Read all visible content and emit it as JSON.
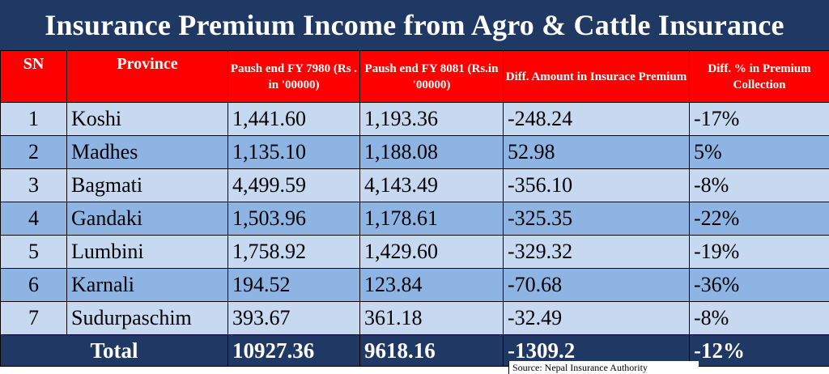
{
  "title": "Insurance Premium Income from Agro & Cattle Insurance",
  "headers": {
    "sn": "SN",
    "province": "Province",
    "fy7980": "Paush end FY 7980 (Rs . in '00000)",
    "fy8081": "Paush end FY 8081 (Rs.in '00000)",
    "diff_amount": "Diff. Amount in Insurace Premium",
    "diff_pct": "Diff. % in Premium Collection"
  },
  "rows": [
    {
      "sn": "1",
      "province": "Koshi",
      "fy7980": "1,441.60",
      "fy8081": "1,193.36",
      "diff_amount": "-248.24",
      "diff_pct": "-17%"
    },
    {
      "sn": "2",
      "province": "Madhes",
      "fy7980": "1,135.10",
      "fy8081": "1,188.08",
      "diff_amount": "52.98",
      "diff_pct": "5%"
    },
    {
      "sn": "3",
      "province": "Bagmati",
      "fy7980": "4,499.59",
      "fy8081": "4,143.49",
      "diff_amount": "-356.10",
      "diff_pct": "-8%"
    },
    {
      "sn": "4",
      "province": "Gandaki",
      "fy7980": "1,503.96",
      "fy8081": "1,178.61",
      "diff_amount": "-325.35",
      "diff_pct": "-22%"
    },
    {
      "sn": "5",
      "province": "Lumbini",
      "fy7980": "1,758.92",
      "fy8081": "1,429.60",
      "diff_amount": "-329.32",
      "diff_pct": "-19%"
    },
    {
      "sn": "6",
      "province": "Karnali",
      "fy7980": "194.52",
      "fy8081": "123.84",
      "diff_amount": "-70.68",
      "diff_pct": "-36%"
    },
    {
      "sn": "7",
      "province": "Sudurpaschim",
      "fy7980": "393.67",
      "fy8081": "361.18",
      "diff_amount": "-32.49",
      "diff_pct": "-8%"
    }
  ],
  "total": {
    "label": "Total",
    "fy7980": "10927.36",
    "fy8081": "9618.16",
    "diff_amount": "-1309.2",
    "diff_pct": "-12%"
  },
  "source": "Source: Nepal Insurance Authority",
  "colors": {
    "title_bg": "#1f3864",
    "header_bg": "#ff0000",
    "row_light": "#c6d9f1",
    "row_dark": "#8eb4e3"
  }
}
